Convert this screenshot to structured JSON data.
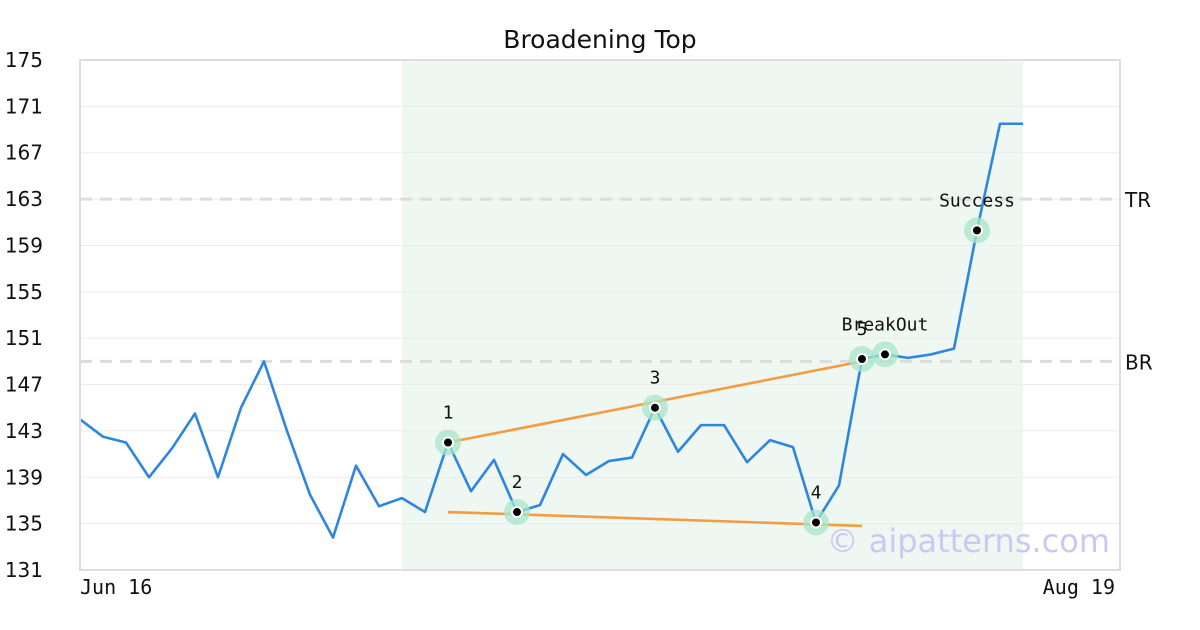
{
  "chart_data": {
    "type": "line",
    "title": "Broadening Top",
    "ylim": [
      131,
      175
    ],
    "yticks": [
      175,
      171,
      167,
      163,
      159,
      155,
      151,
      147,
      143,
      139,
      135,
      131
    ],
    "x_labels": [
      {
        "index": 0,
        "text": "Jun 16",
        "align": "start"
      },
      {
        "index": 45,
        "text": "Aug 19",
        "align": "end"
      }
    ],
    "grid": true,
    "pattern_range": [
      14,
      41
    ],
    "series": [
      {
        "values": [
          144.0,
          142.5,
          142.0,
          139.0,
          141.5,
          144.5,
          139.0,
          145.0,
          149.0,
          143.0,
          137.5,
          133.8,
          140.0,
          136.5,
          137.2,
          136.0,
          142.0,
          137.8,
          140.5,
          136.0,
          136.6,
          141.0,
          139.2,
          140.4,
          140.7,
          145.0,
          141.2,
          143.5,
          143.5,
          140.3,
          142.2,
          141.6,
          135.1,
          138.3,
          149.2,
          149.6,
          149.3,
          149.6,
          150.1,
          160.3,
          169.5,
          169.5
        ],
        "color": "#2e86de"
      }
    ],
    "trend_lines": [
      {
        "from": [
          16,
          142.0
        ],
        "to": [
          34,
          149.0
        ],
        "color": "#f39c42"
      },
      {
        "from": [
          16,
          136.0
        ],
        "to": [
          34,
          134.8
        ],
        "color": "#f39c42"
      }
    ],
    "reference_lines": [
      {
        "value": 163.0,
        "label": "TR"
      },
      {
        "value": 149.0,
        "label": "BR"
      }
    ],
    "points": [
      {
        "x": 16,
        "y": 142.0,
        "label": "1"
      },
      {
        "x": 19,
        "y": 136.0,
        "label": "2"
      },
      {
        "x": 25,
        "y": 145.0,
        "label": "3"
      },
      {
        "x": 32,
        "y": 135.1,
        "label": "4"
      },
      {
        "x": 34,
        "y": 149.2,
        "label": "5"
      },
      {
        "x": 35,
        "y": 149.6,
        "label": "BreakOut"
      },
      {
        "x": 39,
        "y": 160.3,
        "label": "Success"
      }
    ],
    "watermark": "© aipatterns.com"
  }
}
